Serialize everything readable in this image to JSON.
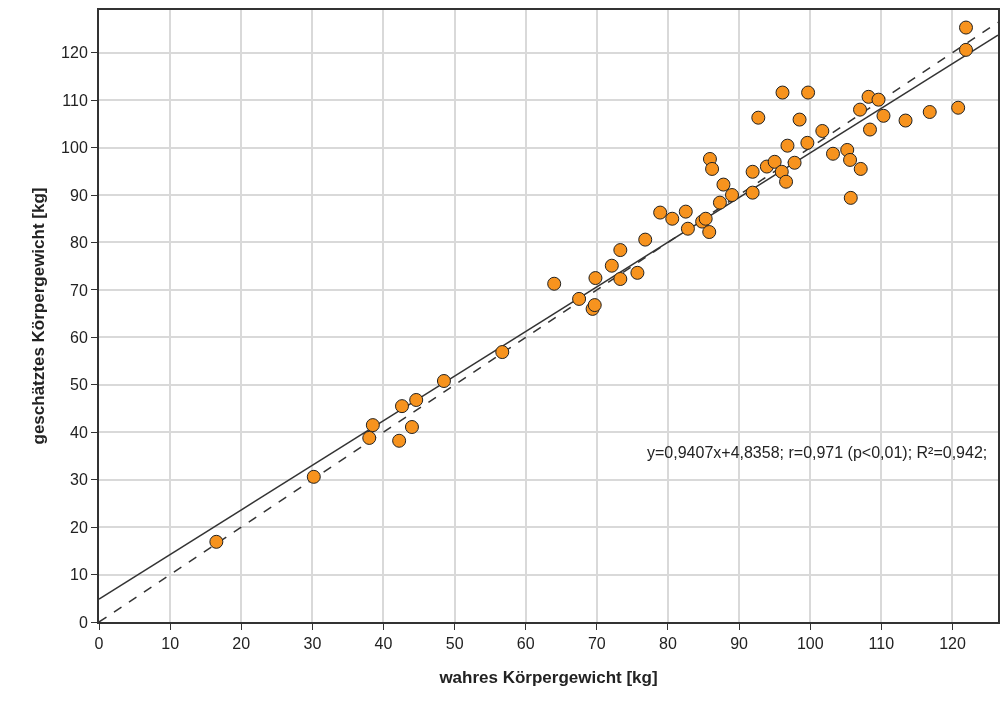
{
  "chart_data": {
    "type": "scatter",
    "xlabel": "wahres Körpergewicht [kg]",
    "ylabel": "geschätztes Körpergewicht [kg]",
    "xlim": [
      0,
      126.4
    ],
    "ylim": [
      0,
      129
    ],
    "xticks": [
      0,
      10,
      20,
      30,
      40,
      50,
      60,
      70,
      80,
      90,
      100,
      110,
      120
    ],
    "yticks": [
      0,
      10,
      20,
      30,
      40,
      50,
      60,
      70,
      80,
      90,
      100,
      110,
      120
    ],
    "grid": true,
    "annotations": [
      "y=0,9407x+4,8358; r=0,971 (p<0,01); R²=0,942;"
    ],
    "series": [
      {
        "color": "#f7931e",
        "marker": "circle",
        "x": [
          16.5,
          30.2,
          38.0,
          38.5,
          42.2,
          42.6,
          44.0,
          44.6,
          48.5,
          56.7,
          64.0,
          67.5,
          69.4,
          69.7,
          69.8,
          72.1,
          73.3,
          73.3,
          75.7,
          76.8,
          78.9,
          80.6,
          82.5,
          82.8,
          84.8,
          85.3,
          85.8,
          85.9,
          86.2,
          87.3,
          87.8,
          89.0,
          91.9,
          91.9,
          92.7,
          93.9,
          95.0,
          96.0,
          96.1,
          96.6,
          96.8,
          97.8,
          98.5,
          99.6,
          99.7,
          101.7,
          103.2,
          105.2,
          105.6,
          105.7,
          107.1,
          107.0,
          108.4,
          108.2,
          109.6,
          110.3,
          113.4,
          116.8,
          120.8,
          121.9,
          121.9
        ],
        "values": [
          16.9,
          30.6,
          38.8,
          41.5,
          38.2,
          45.5,
          41.1,
          46.8,
          50.8,
          56.9,
          71.3,
          68.1,
          66.0,
          66.8,
          72.5,
          75.1,
          78.4,
          72.3,
          73.6,
          80.6,
          86.3,
          85.0,
          86.5,
          82.9,
          84.4,
          85.0,
          82.2,
          97.6,
          95.5,
          88.4,
          92.2,
          90.0,
          90.5,
          94.9,
          106.3,
          96.0,
          97.0,
          94.9,
          111.6,
          92.8,
          100.4,
          96.8,
          105.9,
          101.0,
          111.6,
          103.5,
          98.7,
          99.5,
          97.4,
          89.4,
          95.5,
          108.0,
          103.8,
          110.7,
          110.1,
          106.7,
          105.7,
          107.5,
          108.4,
          125.3,
          120.6
        ]
      },
      {
        "type": "line",
        "color": "#333333",
        "line_style": "solid",
        "marker": "none",
        "x": [
          0,
          126.4
        ],
        "values": [
          4.8,
          123.7
        ]
      },
      {
        "type": "line",
        "color": "#333333",
        "line_style": "dashed",
        "marker": "none",
        "x": [
          0,
          126.4
        ],
        "values": [
          0,
          126.4
        ]
      }
    ]
  }
}
